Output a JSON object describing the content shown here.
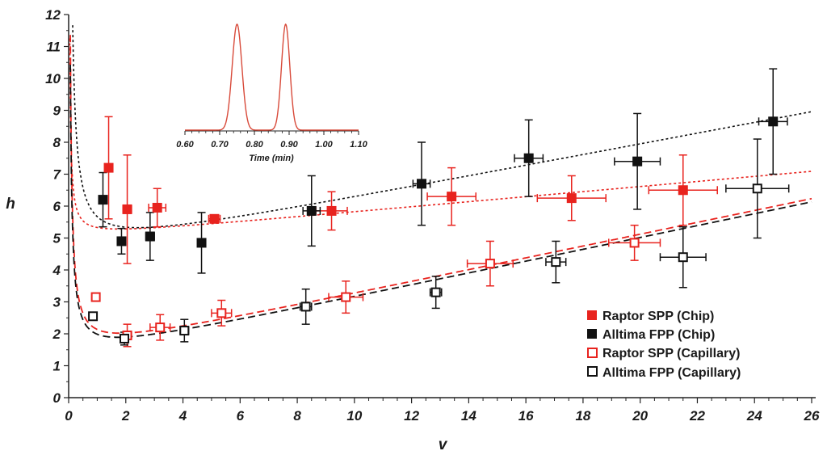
{
  "chart_data": {
    "type": "scatter",
    "xlabel": "v",
    "ylabel": "h",
    "xlim": [
      0,
      26
    ],
    "ylim": [
      0,
      12
    ],
    "x_ticks": [
      "0",
      "2",
      "4",
      "6",
      "8",
      "10",
      "12",
      "14",
      "16",
      "18",
      "20",
      "22",
      "24",
      "26"
    ],
    "y_ticks": [
      "0",
      "1",
      "2",
      "3",
      "4",
      "5",
      "6",
      "7",
      "8",
      "9",
      "10",
      "11",
      "12"
    ],
    "series": [
      {
        "name": "Raptor SPP (Chip)",
        "color": "#e8231e",
        "marker": "filled-square",
        "points": [
          {
            "x": 1.4,
            "y": 7.2,
            "xerr": 0.1,
            "yerr": 1.6
          },
          {
            "x": 2.05,
            "y": 5.9,
            "xerr": 0.15,
            "yerr": 1.7
          },
          {
            "x": 3.1,
            "y": 5.95,
            "xerr": 0.3,
            "yerr": 0.6
          },
          {
            "x": 5.1,
            "y": 5.6,
            "xerr": 0.2,
            "yerr": 0.1
          },
          {
            "x": 9.2,
            "y": 5.85,
            "xerr": 0.55,
            "yerr": 0.6
          },
          {
            "x": 13.4,
            "y": 6.3,
            "xerr": 0.85,
            "yerr": 0.9
          },
          {
            "x": 17.6,
            "y": 6.25,
            "xerr": 1.2,
            "yerr": 0.7
          },
          {
            "x": 21.5,
            "y": 6.5,
            "xerr": 1.2,
            "yerr": 1.1
          }
        ],
        "fit": {
          "A": 0.25,
          "B": 5.0,
          "C": 0.08
        }
      },
      {
        "name": "Alltima FPP (Chip)",
        "color": "#111111",
        "marker": "filled-square",
        "points": [
          {
            "x": 1.2,
            "y": 6.2,
            "xerr": 0.1,
            "yerr": 0.85
          },
          {
            "x": 1.85,
            "y": 4.9,
            "xerr": 0.1,
            "yerr": 0.4
          },
          {
            "x": 2.85,
            "y": 5.05,
            "xerr": 0.15,
            "yerr": 0.75
          },
          {
            "x": 4.65,
            "y": 4.85,
            "xerr": 0.1,
            "yerr": 0.95
          },
          {
            "x": 8.5,
            "y": 5.85,
            "xerr": 0.3,
            "yerr": 1.1
          },
          {
            "x": 12.35,
            "y": 6.7,
            "xerr": 0.3,
            "yerr": 1.3
          },
          {
            "x": 16.1,
            "y": 7.5,
            "xerr": 0.5,
            "yerr": 1.2
          },
          {
            "x": 19.9,
            "y": 7.4,
            "xerr": 0.8,
            "yerr": 1.5
          },
          {
            "x": 24.65,
            "y": 8.65,
            "xerr": 0.5,
            "yerr": 1.65
          }
        ],
        "fit": {
          "A": 1.0,
          "B": 4.5,
          "C": 0.17
        }
      },
      {
        "name": "Raptor SPP (Capillary)",
        "color": "#e8231e",
        "marker": "open-square",
        "points": [
          {
            "x": 0.95,
            "y": 3.15,
            "xerr": 0.08,
            "yerr": 0.1
          },
          {
            "x": 2.05,
            "y": 1.95,
            "xerr": 0.15,
            "yerr": 0.35
          },
          {
            "x": 3.2,
            "y": 2.2,
            "xerr": 0.35,
            "yerr": 0.4
          },
          {
            "x": 5.35,
            "y": 2.65,
            "xerr": 0.35,
            "yerr": 0.4
          },
          {
            "x": 9.7,
            "y": 3.15,
            "xerr": 0.6,
            "yerr": 0.5
          },
          {
            "x": 14.75,
            "y": 4.2,
            "xerr": 0.8,
            "yerr": 0.7
          },
          {
            "x": 19.8,
            "y": 4.85,
            "xerr": 0.9,
            "yerr": 0.55
          }
        ],
        "fit": {
          "A": 0.6,
          "B": 1.35,
          "C": 0.187
        }
      },
      {
        "name": "Alltima FPP (Capillary)",
        "color": "#111111",
        "marker": "open-square",
        "points": [
          {
            "x": 0.85,
            "y": 2.55,
            "xerr": 0.08,
            "yerr": 0.05
          },
          {
            "x": 1.95,
            "y": 1.85,
            "xerr": 0.12,
            "yerr": 0.2
          },
          {
            "x": 4.05,
            "y": 2.1,
            "xerr": 0.15,
            "yerr": 0.35
          },
          {
            "x": 8.3,
            "y": 2.85,
            "xerr": 0.2,
            "yerr": 0.55
          },
          {
            "x": 12.85,
            "y": 3.3,
            "xerr": 0.2,
            "yerr": 0.5
          },
          {
            "x": 17.05,
            "y": 4.25,
            "xerr": 0.35,
            "yerr": 0.65
          },
          {
            "x": 21.5,
            "y": 4.4,
            "xerr": 0.8,
            "yerr": 0.95
          },
          {
            "x": 24.1,
            "y": 6.55,
            "xerr": 1.1,
            "yerr": 1.55
          }
        ],
        "fit": {
          "A": 0.55,
          "B": 1.25,
          "C": 0.187
        }
      }
    ],
    "inset": {
      "type": "line",
      "xlabel": "Time (min)",
      "xlim": [
        0.6,
        1.1
      ],
      "x_ticks": [
        "0.60",
        "0.70",
        "0.80",
        "0.90",
        "1.00",
        "1.10"
      ],
      "peaks": [
        {
          "center": 0.75,
          "width": 0.014
        },
        {
          "center": 0.89,
          "width": 0.012
        }
      ],
      "color": "#d84a3a"
    }
  }
}
